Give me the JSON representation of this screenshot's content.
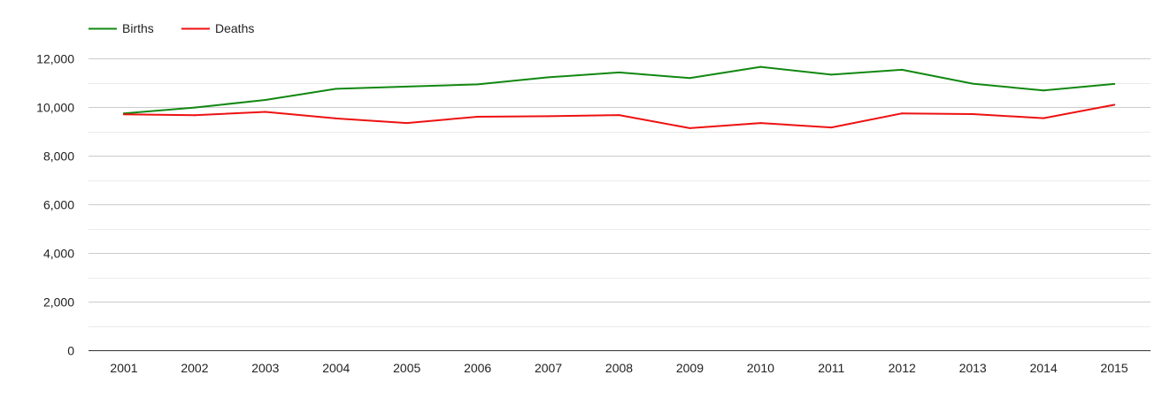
{
  "chart_data": {
    "type": "line",
    "title": "",
    "xlabel": "",
    "ylabel": "",
    "legend_position": "top-left",
    "grid": true,
    "ylim": [
      0,
      12000
    ],
    "y_ticks": [
      "0",
      "2,000",
      "4,000",
      "6,000",
      "8,000",
      "10,000",
      "12,000"
    ],
    "categories": [
      "2001",
      "2002",
      "2003",
      "2004",
      "2005",
      "2006",
      "2007",
      "2008",
      "2009",
      "2010",
      "2011",
      "2012",
      "2013",
      "2014",
      "2015"
    ],
    "series": [
      {
        "name": "Births",
        "color": "#118811",
        "values": [
          9740,
          9980,
          10290,
          10750,
          10840,
          10930,
          11220,
          11420,
          11190,
          11650,
          11330,
          11530,
          10960,
          10680,
          10950
        ]
      },
      {
        "name": "Deaths",
        "color": "#ee1111",
        "values": [
          9700,
          9660,
          9800,
          9530,
          9340,
          9600,
          9620,
          9670,
          9130,
          9340,
          9160,
          9740,
          9710,
          9540,
          10090
        ]
      }
    ]
  }
}
